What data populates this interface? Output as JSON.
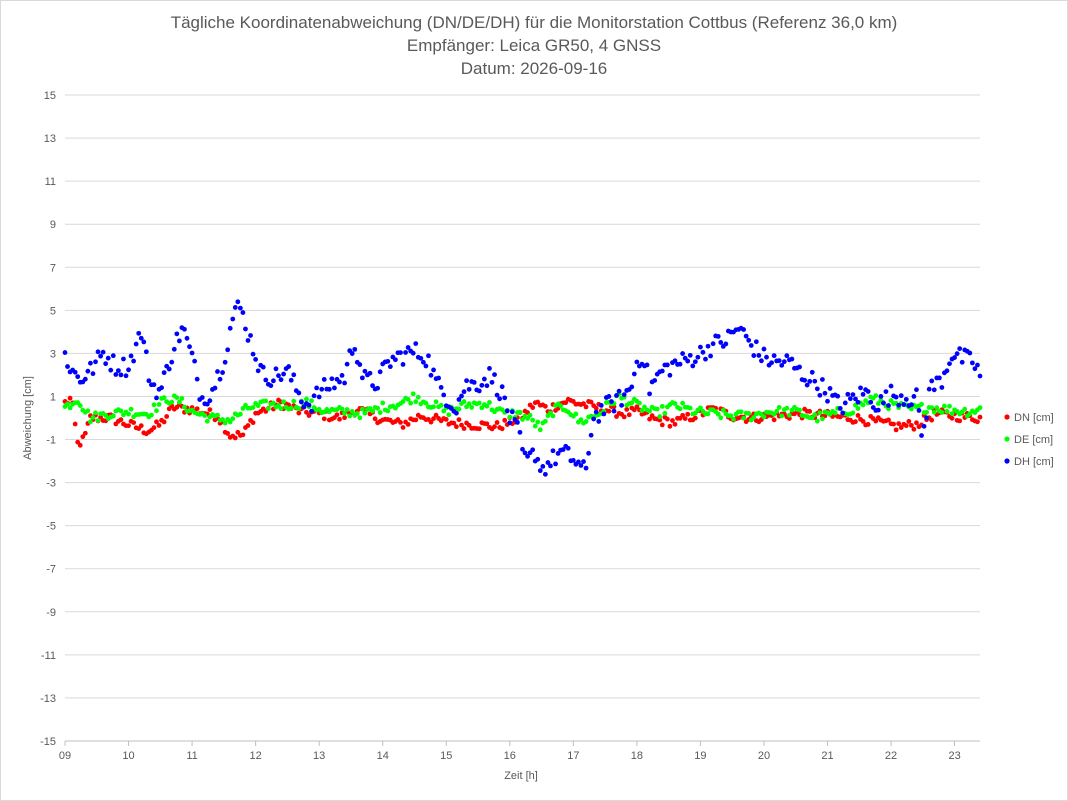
{
  "chart_data": {
    "type": "scatter",
    "title": "Tägliche Koordinatenabweichung (DN/DE/DH) für die Monitorstation Cottbus (Referenz 36,0 km)",
    "subtitle1": "Empfänger: Leica GR50, 4 GNSS",
    "subtitle2": "Datum: 2026-09-16",
    "xlabel": "Zeit [h]",
    "ylabel": "Abweichung [cm]",
    "xlim": [
      9,
      23.4
    ],
    "ylim": [
      -15,
      15
    ],
    "xticks": [
      9,
      10,
      11,
      12,
      13,
      14,
      15,
      16,
      17,
      18,
      19,
      20,
      21,
      22,
      23
    ],
    "xtick_labels": [
      "09",
      "10",
      "11",
      "12",
      "13",
      "14",
      "15",
      "16",
      "17",
      "18",
      "19",
      "20",
      "21",
      "22",
      "23"
    ],
    "yticks": [
      15,
      13,
      11,
      9,
      7,
      5,
      3,
      1,
      -1,
      -3,
      -5,
      -7,
      -9,
      -11,
      -13,
      -15
    ],
    "ytick_labels": [
      "15",
      "13",
      "11",
      "9",
      "7",
      "5",
      "3",
      "1",
      "-1",
      "-3",
      "-5",
      "-7",
      "-9",
      "-11",
      "-13",
      "-15"
    ],
    "legend_position": "right",
    "grid": true,
    "sample_interval_h": 0.04,
    "series": [
      {
        "name": "DN [cm]",
        "color": "#ff0000",
        "keypoints": [
          [
            9.0,
            0.7
          ],
          [
            9.1,
            0.9
          ],
          [
            9.2,
            -1.2
          ],
          [
            9.3,
            -1.0
          ],
          [
            9.4,
            0.0
          ],
          [
            9.7,
            0.0
          ],
          [
            10.0,
            -0.3
          ],
          [
            10.3,
            -0.6
          ],
          [
            10.5,
            -0.3
          ],
          [
            10.7,
            0.5
          ],
          [
            11.0,
            0.4
          ],
          [
            11.4,
            0.1
          ],
          [
            11.6,
            -0.8
          ],
          [
            11.8,
            -0.8
          ],
          [
            12.0,
            0.2
          ],
          [
            12.4,
            0.7
          ],
          [
            12.7,
            0.3
          ],
          [
            13.0,
            0.2
          ],
          [
            13.3,
            0.0
          ],
          [
            13.6,
            0.4
          ],
          [
            14.0,
            -0.1
          ],
          [
            14.3,
            -0.3
          ],
          [
            14.6,
            0.1
          ],
          [
            15.0,
            -0.2
          ],
          [
            15.4,
            -0.3
          ],
          [
            15.8,
            -0.4
          ],
          [
            16.0,
            -0.2
          ],
          [
            16.2,
            0.1
          ],
          [
            16.4,
            0.7
          ],
          [
            16.6,
            0.4
          ],
          [
            16.9,
            0.8
          ],
          [
            17.2,
            0.6
          ],
          [
            17.5,
            0.4
          ],
          [
            17.8,
            0.2
          ],
          [
            18.0,
            0.3
          ],
          [
            18.3,
            -0.1
          ],
          [
            18.6,
            -0.2
          ],
          [
            18.9,
            0.1
          ],
          [
            19.2,
            0.4
          ],
          [
            19.5,
            0.1
          ],
          [
            19.8,
            0.0
          ],
          [
            20.2,
            0.1
          ],
          [
            20.6,
            0.2
          ],
          [
            21.0,
            0.1
          ],
          [
            21.4,
            0.0
          ],
          [
            21.8,
            -0.2
          ],
          [
            22.1,
            -0.4
          ],
          [
            22.4,
            -0.3
          ],
          [
            22.7,
            0.2
          ],
          [
            23.0,
            0.1
          ],
          [
            23.4,
            0.0
          ]
        ]
      },
      {
        "name": "DE [cm]",
        "color": "#00ff00",
        "keypoints": [
          [
            9.0,
            0.5
          ],
          [
            9.2,
            0.9
          ],
          [
            9.4,
            0.0
          ],
          [
            9.7,
            0.2
          ],
          [
            10.0,
            0.3
          ],
          [
            10.3,
            0.2
          ],
          [
            10.6,
            0.9
          ],
          [
            10.8,
            0.8
          ],
          [
            11.0,
            0.3
          ],
          [
            11.3,
            0.0
          ],
          [
            11.6,
            -0.1
          ],
          [
            11.9,
            0.5
          ],
          [
            12.2,
            0.6
          ],
          [
            12.5,
            0.6
          ],
          [
            12.8,
            0.7
          ],
          [
            13.1,
            0.3
          ],
          [
            13.4,
            0.3
          ],
          [
            13.7,
            0.2
          ],
          [
            14.0,
            0.5
          ],
          [
            14.3,
            0.7
          ],
          [
            14.5,
            1.0
          ],
          [
            14.8,
            0.6
          ],
          [
            15.0,
            0.3
          ],
          [
            15.3,
            0.6
          ],
          [
            15.6,
            0.7
          ],
          [
            15.9,
            0.2
          ],
          [
            16.1,
            0.2
          ],
          [
            16.3,
            0.0
          ],
          [
            16.5,
            -0.5
          ],
          [
            16.7,
            0.4
          ],
          [
            16.9,
            0.5
          ],
          [
            17.1,
            -0.2
          ],
          [
            17.4,
            0.2
          ],
          [
            17.7,
            1.0
          ],
          [
            18.0,
            0.6
          ],
          [
            18.3,
            0.2
          ],
          [
            18.6,
            0.6
          ],
          [
            18.9,
            0.3
          ],
          [
            19.2,
            0.2
          ],
          [
            19.5,
            0.1
          ],
          [
            19.8,
            0.1
          ],
          [
            20.1,
            0.3
          ],
          [
            20.5,
            0.3
          ],
          [
            20.8,
            0.0
          ],
          [
            21.1,
            0.2
          ],
          [
            21.4,
            0.4
          ],
          [
            21.7,
            0.9
          ],
          [
            22.0,
            0.6
          ],
          [
            22.3,
            0.4
          ],
          [
            22.6,
            0.5
          ],
          [
            22.9,
            0.4
          ],
          [
            23.2,
            0.3
          ],
          [
            23.4,
            0.4
          ]
        ]
      },
      {
        "name": "DH [cm]",
        "color": "#0000ff",
        "keypoints": [
          [
            9.0,
            3.0
          ],
          [
            9.1,
            2.2
          ],
          [
            9.25,
            1.8
          ],
          [
            9.4,
            2.2
          ],
          [
            9.6,
            3.0
          ],
          [
            9.8,
            2.4
          ],
          [
            10.0,
            2.4
          ],
          [
            10.2,
            4.0
          ],
          [
            10.35,
            1.6
          ],
          [
            10.5,
            1.2
          ],
          [
            10.7,
            3.2
          ],
          [
            10.85,
            4.2
          ],
          [
            11.0,
            2.8
          ],
          [
            11.15,
            0.9
          ],
          [
            11.3,
            1.2
          ],
          [
            11.5,
            2.7
          ],
          [
            11.65,
            4.8
          ],
          [
            11.75,
            5.2
          ],
          [
            11.9,
            3.8
          ],
          [
            12.1,
            2.0
          ],
          [
            12.3,
            1.9
          ],
          [
            12.5,
            2.2
          ],
          [
            12.7,
            1.0
          ],
          [
            12.85,
            0.6
          ],
          [
            13.0,
            1.2
          ],
          [
            13.2,
            1.6
          ],
          [
            13.4,
            1.9
          ],
          [
            13.55,
            3.6
          ],
          [
            13.7,
            1.8
          ],
          [
            13.9,
            1.6
          ],
          [
            14.1,
            2.6
          ],
          [
            14.3,
            2.9
          ],
          [
            14.5,
            3.1
          ],
          [
            14.7,
            2.8
          ],
          [
            14.85,
            1.6
          ],
          [
            15.0,
            1.0
          ],
          [
            15.15,
            0.5
          ],
          [
            15.3,
            1.5
          ],
          [
            15.5,
            1.6
          ],
          [
            15.7,
            2.0
          ],
          [
            15.9,
            1.0
          ],
          [
            16.0,
            0.0
          ],
          [
            16.1,
            -0.4
          ],
          [
            16.25,
            -2.1
          ],
          [
            16.4,
            -1.6
          ],
          [
            16.5,
            -2.4
          ],
          [
            16.65,
            -2.0
          ],
          [
            16.8,
            -1.6
          ],
          [
            16.95,
            -1.8
          ],
          [
            17.1,
            -2.2
          ],
          [
            17.2,
            -2.6
          ],
          [
            17.3,
            0.0
          ],
          [
            17.5,
            0.5
          ],
          [
            17.7,
            0.8
          ],
          [
            17.9,
            1.3
          ],
          [
            18.0,
            2.6
          ],
          [
            18.1,
            3.0
          ],
          [
            18.2,
            1.4
          ],
          [
            18.4,
            2.2
          ],
          [
            18.6,
            2.5
          ],
          [
            18.8,
            2.7
          ],
          [
            19.0,
            3.0
          ],
          [
            19.2,
            3.4
          ],
          [
            19.4,
            3.6
          ],
          [
            19.6,
            4.2
          ],
          [
            19.7,
            3.8
          ],
          [
            19.8,
            3.4
          ],
          [
            20.0,
            2.8
          ],
          [
            20.2,
            2.6
          ],
          [
            20.4,
            2.6
          ],
          [
            20.6,
            2.0
          ],
          [
            20.8,
            1.7
          ],
          [
            21.0,
            1.2
          ],
          [
            21.2,
            0.5
          ],
          [
            21.4,
            0.9
          ],
          [
            21.6,
            1.2
          ],
          [
            21.8,
            0.6
          ],
          [
            22.0,
            1.1
          ],
          [
            22.2,
            1.0
          ],
          [
            22.4,
            0.9
          ],
          [
            22.5,
            -1.0
          ],
          [
            22.6,
            1.3
          ],
          [
            22.8,
            1.8
          ],
          [
            22.95,
            3.0
          ],
          [
            23.1,
            2.8
          ],
          [
            23.3,
            2.6
          ],
          [
            23.4,
            2.0
          ]
        ]
      }
    ]
  }
}
